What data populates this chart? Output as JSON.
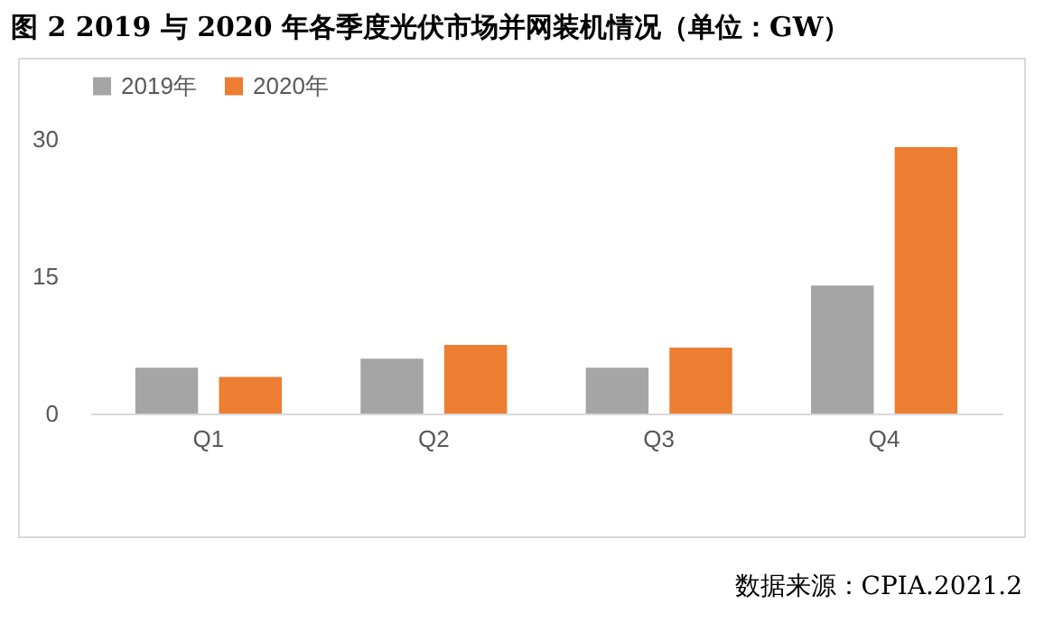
{
  "chart_data": {
    "type": "bar",
    "title": "图 2 2019 与 2020 年各季度光伏市场并网装机情况（单位：GW）",
    "categories": [
      "Q1",
      "Q2",
      "Q3",
      "Q4"
    ],
    "series": [
      {
        "name": "2019年",
        "color": "#a5a5a5",
        "values": [
          5,
          6,
          5,
          14
        ]
      },
      {
        "name": "2020年",
        "color": "#ed7d31",
        "values": [
          4,
          7.5,
          7.2,
          29.1
        ]
      }
    ],
    "ylim": [
      0,
      30
    ],
    "yticks": [
      0,
      15,
      30
    ],
    "grid": false,
    "legend": "top",
    "annotations": [
      "数据来源：CPIA.2021.2"
    ]
  }
}
